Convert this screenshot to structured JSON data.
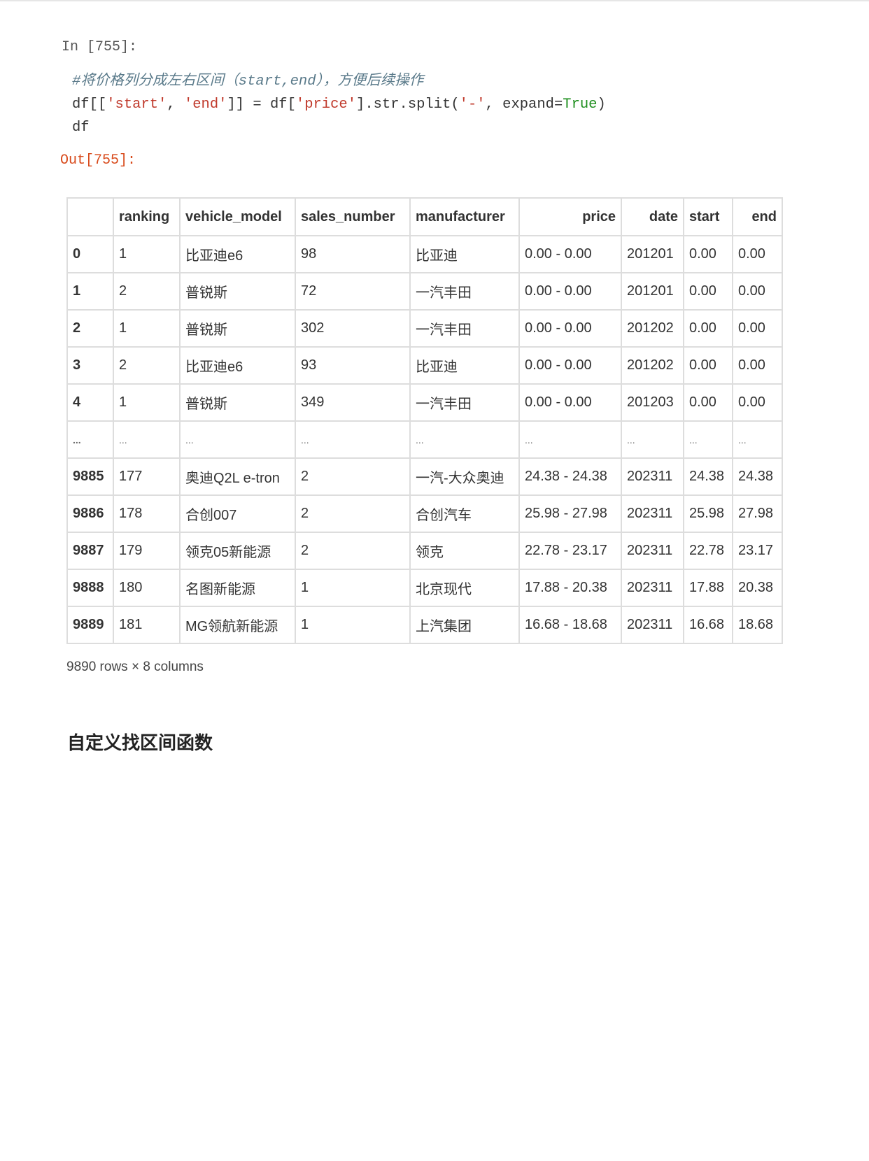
{
  "cell": {
    "in_prompt": "In [755]:",
    "out_prompt": "Out[755]:",
    "code": {
      "comment": "#将价格列分成左右区间（start,end），方便后续操作",
      "line2_a": "df[[",
      "line2_s1": "'start'",
      "line2_b": ", ",
      "line2_s2": "'end'",
      "line2_c": "]] = df[",
      "line2_s3": "'price'",
      "line2_d": "].str.split(",
      "line2_s4": "'-'",
      "line2_e": ", expand=",
      "line2_kw": "True",
      "line2_f": ")",
      "line3": "df"
    }
  },
  "table": {
    "columns": [
      "",
      "ranking",
      "vehicle_model",
      "sales_number",
      "manufacturer",
      "price",
      "date",
      "start",
      "end"
    ],
    "rows": [
      [
        "0",
        "1",
        "比亚迪e6",
        "98",
        "比亚迪",
        "0.00 - 0.00",
        "201201",
        "0.00",
        "0.00"
      ],
      [
        "1",
        "2",
        "普锐斯",
        "72",
        "一汽丰田",
        "0.00 - 0.00",
        "201201",
        "0.00",
        "0.00"
      ],
      [
        "2",
        "1",
        "普锐斯",
        "302",
        "一汽丰田",
        "0.00 - 0.00",
        "201202",
        "0.00",
        "0.00"
      ],
      [
        "3",
        "2",
        "比亚迪e6",
        "93",
        "比亚迪",
        "0.00 - 0.00",
        "201202",
        "0.00",
        "0.00"
      ],
      [
        "4",
        "1",
        "普锐斯",
        "349",
        "一汽丰田",
        "0.00 - 0.00",
        "201203",
        "0.00",
        "0.00"
      ],
      [
        "...",
        "...",
        "...",
        "...",
        "...",
        "...",
        "...",
        "...",
        "..."
      ],
      [
        "9885",
        "177",
        "奥迪Q2L e-tron",
        "2",
        "一汽-大众奥迪",
        "24.38 - 24.38",
        "202311",
        "24.38",
        "24.38"
      ],
      [
        "9886",
        "178",
        "合创007",
        "2",
        "合创汽车",
        "25.98 - 27.98",
        "202311",
        "25.98",
        "27.98"
      ],
      [
        "9887",
        "179",
        "领克05新能源",
        "2",
        "领克",
        "22.78 - 23.17",
        "202311",
        "22.78",
        "23.17"
      ],
      [
        "9888",
        "180",
        "名图新能源",
        "1",
        "北京现代",
        "17.88 - 20.38",
        "202311",
        "17.88",
        "20.38"
      ],
      [
        "9889",
        "181",
        "MG领航新能源",
        "1",
        "上汽集团",
        "16.68 - 18.68",
        "202311",
        "16.68",
        "18.68"
      ]
    ],
    "shape": "9890 rows × 8 columns"
  },
  "heading": "自定义找区间函数"
}
